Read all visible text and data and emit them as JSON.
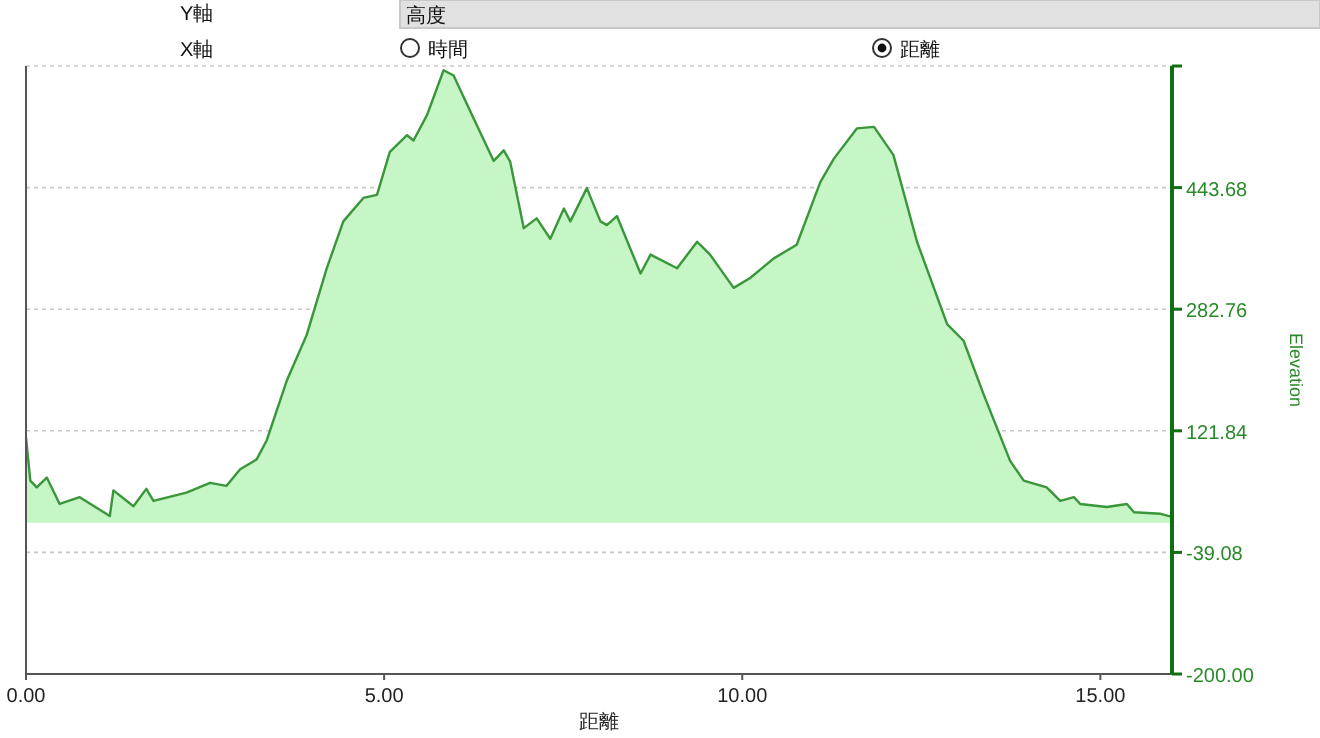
{
  "chart_data": {
    "type": "area",
    "xlabel": "距離",
    "ylabel": "Elevation",
    "annotations": [
      "Y軸",
      "高度",
      "X軸",
      "時間",
      "距離"
    ],
    "xlim": [
      0,
      16
    ],
    "ylim": [
      -200,
      604.6
    ],
    "xticks": [
      {
        "value": 0,
        "label": "0.00"
      },
      {
        "value": 5,
        "label": "5.00"
      },
      {
        "value": 10,
        "label": "10.00"
      },
      {
        "value": 15,
        "label": "15.00"
      }
    ],
    "yticks": [
      {
        "value": -200,
        "label": "-200.00"
      },
      {
        "value": -39.08,
        "label": "-39.08"
      },
      {
        "value": 121.84,
        "label": "121.84"
      },
      {
        "value": 282.76,
        "label": "282.76"
      },
      {
        "value": 443.68,
        "label": "443.68"
      },
      {
        "value": 604.6,
        "label": null
      }
    ],
    "grid": "y",
    "series": [
      {
        "color": "#3a963a",
        "x": [
          0,
          0.06,
          0.15,
          0.29,
          0.47,
          0.75,
          1.17,
          1.22,
          1.5,
          1.68,
          1.78,
          2.24,
          2.57,
          2.8,
          2.99,
          3.22,
          3.36,
          3.64,
          3.92,
          4.2,
          4.43,
          4.71,
          4.9,
          5.08,
          5.32,
          5.41,
          5.6,
          5.83,
          5.97,
          6.25,
          6.53,
          6.67,
          6.76,
          6.95,
          7.13,
          7.32,
          7.51,
          7.6,
          7.83,
          8.02,
          8.11,
          8.25,
          8.58,
          8.72,
          9.09,
          9.37,
          9.55,
          9.88,
          10.11,
          10.44,
          10.76,
          11.09,
          11.28,
          11.6,
          11.84,
          12.11,
          12.44,
          12.86,
          13.09,
          13.37,
          13.74,
          13.93,
          14.25,
          14.44,
          14.63,
          14.72,
          15.09,
          15.37,
          15.47,
          15.84,
          16
        ],
        "values": [
          113,
          56,
          47,
          60,
          25,
          34,
          9,
          43,
          22,
          45,
          29,
          40,
          53,
          49,
          71,
          84,
          109,
          188,
          249,
          337,
          399,
          430,
          434,
          491,
          513,
          506,
          540,
          599,
          592,
          535,
          479,
          493,
          478,
          390,
          403,
          376,
          416,
          399,
          443,
          399,
          394,
          406,
          330,
          355,
          337,
          372,
          355,
          311,
          324,
          350,
          368,
          451,
          482,
          522,
          524,
          487,
          372,
          263,
          241,
          170,
          82,
          56,
          47,
          29,
          34,
          25,
          21,
          25,
          14,
          12,
          8
        ]
      }
    ]
  }
}
